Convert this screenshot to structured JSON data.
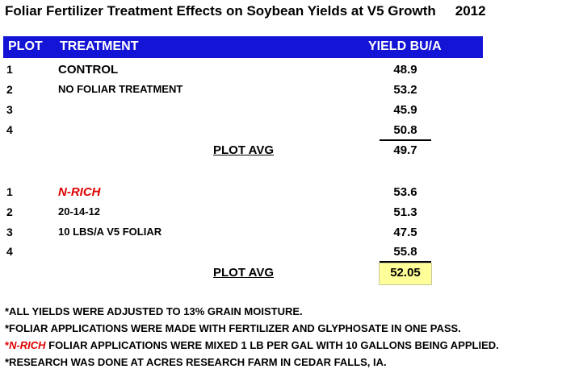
{
  "title": "Foliar Fertilizer Treatment Effects on Soybean Yields at V5 Growth",
  "year": "2012",
  "header": {
    "plot": "PLOT",
    "treatment": "TREATMENT",
    "yield": "YIELD BU/A"
  },
  "group1": {
    "rows": [
      {
        "plot": "1",
        "treatment": "CONTROL",
        "yield": "48.9"
      },
      {
        "plot": "2",
        "treatment": "NO FOLIAR TREATMENT",
        "yield": "53.2"
      },
      {
        "plot": "3",
        "treatment": "",
        "yield": "45.9"
      },
      {
        "plot": "4",
        "treatment": "",
        "yield": "50.8"
      }
    ],
    "avg_label": "PLOT AVG",
    "avg_value": "49.7"
  },
  "group2": {
    "rows": [
      {
        "plot": "1",
        "treatment": "N-RICH",
        "yield": "53.6"
      },
      {
        "plot": "2",
        "treatment": "20-14-12",
        "yield": "51.3"
      },
      {
        "plot": "3",
        "treatment": "10 LBS/A V5 FOLIAR",
        "yield": "47.5"
      },
      {
        "plot": "4",
        "treatment": "",
        "yield": "55.8"
      }
    ],
    "avg_label": "PLOT AVG",
    "avg_value": "52.05"
  },
  "notes": {
    "line1": "*ALL YIELDS WERE ADJUSTED TO 13% GRAIN MOISTURE.",
    "line2": "*FOLIAR APPLICATIONS WERE MADE WITH FERTILIZER AND GLYPHOSATE IN ONE PASS.",
    "line3_star": "*",
    "line3_emph": "N-RICH",
    "line3_rest": " FOLIAR APPLICATIONS WERE MIXED 1 LB PER GAL WITH 10 GALLONS BEING APPLIED.",
    "line4": "*RESEARCH WAS DONE AT ACRES RESEARCH FARM IN CEDAR FALLS, IA."
  },
  "colors": {
    "header_bg": "#1414d6",
    "accent_red": "#e00000",
    "highlight": "#ffff99"
  }
}
